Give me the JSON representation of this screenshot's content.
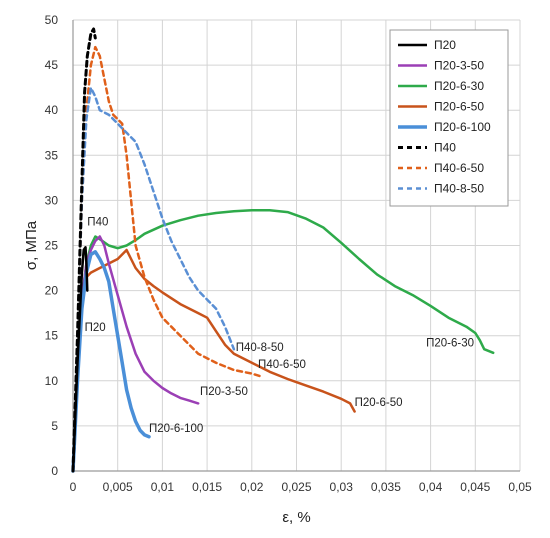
{
  "chart_data": {
    "type": "line",
    "xlabel": "ε, %",
    "ylabel": "σ, МПа",
    "xlim": [
      0,
      0.05
    ],
    "ylim": [
      0,
      50
    ],
    "x_ticks": [
      "0",
      "0,005",
      "0,01",
      "0,015",
      "0,02",
      "0,025",
      "0,03",
      "0,035",
      "0,04",
      "0,045",
      "0,05"
    ],
    "y_ticks": [
      "0",
      "5",
      "10",
      "15",
      "20",
      "25",
      "30",
      "35",
      "40",
      "45",
      "50"
    ],
    "grid": true,
    "legend_position": "top-right",
    "series": [
      {
        "name": "П20",
        "color": "#000000",
        "dash": "solid",
        "width": 2.5,
        "points": [
          [
            0,
            0
          ],
          [
            0.0005,
            12
          ],
          [
            0.001,
            22
          ],
          [
            0.0012,
            24.5
          ],
          [
            0.0014,
            24.8
          ],
          [
            0.0015,
            23
          ],
          [
            0.0016,
            20
          ]
        ]
      },
      {
        "name": "П20-3-50",
        "color": "#9b3fb5",
        "dash": "solid",
        "width": 2.5,
        "points": [
          [
            0,
            0
          ],
          [
            0.0005,
            10
          ],
          [
            0.001,
            19
          ],
          [
            0.0015,
            23
          ],
          [
            0.002,
            24.5
          ],
          [
            0.0025,
            25.5
          ],
          [
            0.003,
            26
          ],
          [
            0.0035,
            25
          ],
          [
            0.004,
            23
          ],
          [
            0.005,
            19.5
          ],
          [
            0.006,
            16
          ],
          [
            0.007,
            13
          ],
          [
            0.008,
            11
          ],
          [
            0.009,
            10
          ],
          [
            0.01,
            9.2
          ],
          [
            0.011,
            8.6
          ],
          [
            0.012,
            8.1
          ],
          [
            0.013,
            7.8
          ],
          [
            0.014,
            7.5
          ]
        ]
      },
      {
        "name": "П20-6-30",
        "color": "#2eaa4a",
        "dash": "solid",
        "width": 2.5,
        "points": [
          [
            0,
            0
          ],
          [
            0.0005,
            10
          ],
          [
            0.001,
            19
          ],
          [
            0.0015,
            23
          ],
          [
            0.002,
            25
          ],
          [
            0.0025,
            26
          ],
          [
            0.003,
            25.7
          ],
          [
            0.004,
            25
          ],
          [
            0.005,
            24.7
          ],
          [
            0.006,
            25
          ],
          [
            0.007,
            25.6
          ],
          [
            0.008,
            26.3
          ],
          [
            0.01,
            27.2
          ],
          [
            0.012,
            27.8
          ],
          [
            0.014,
            28.3
          ],
          [
            0.016,
            28.6
          ],
          [
            0.018,
            28.8
          ],
          [
            0.02,
            28.9
          ],
          [
            0.022,
            28.9
          ],
          [
            0.024,
            28.7
          ],
          [
            0.026,
            28
          ],
          [
            0.028,
            27
          ],
          [
            0.03,
            25.3
          ],
          [
            0.032,
            23.5
          ],
          [
            0.034,
            21.8
          ],
          [
            0.036,
            20.5
          ],
          [
            0.038,
            19.5
          ],
          [
            0.04,
            18.3
          ],
          [
            0.042,
            17
          ],
          [
            0.044,
            16
          ],
          [
            0.045,
            15.3
          ],
          [
            0.0455,
            14.5
          ],
          [
            0.046,
            13.5
          ],
          [
            0.047,
            13.1
          ]
        ]
      },
      {
        "name": "П20-6-50",
        "color": "#c8531b",
        "dash": "solid",
        "width": 2.5,
        "points": [
          [
            0,
            0
          ],
          [
            0.0005,
            10
          ],
          [
            0.001,
            18.5
          ],
          [
            0.0015,
            21.5
          ],
          [
            0.002,
            22
          ],
          [
            0.003,
            22.5
          ],
          [
            0.004,
            23
          ],
          [
            0.005,
            23.5
          ],
          [
            0.006,
            24.5
          ],
          [
            0.0065,
            23.5
          ],
          [
            0.007,
            22.5
          ],
          [
            0.008,
            21.3
          ],
          [
            0.009,
            20.5
          ],
          [
            0.01,
            19.8
          ],
          [
            0.012,
            18.5
          ],
          [
            0.014,
            17.5
          ],
          [
            0.015,
            17
          ],
          [
            0.016,
            15.5
          ],
          [
            0.017,
            14
          ],
          [
            0.018,
            13
          ],
          [
            0.02,
            12
          ],
          [
            0.022,
            11
          ],
          [
            0.024,
            10.2
          ],
          [
            0.026,
            9.5
          ],
          [
            0.028,
            8.8
          ],
          [
            0.03,
            8
          ],
          [
            0.031,
            7.5
          ],
          [
            0.0315,
            6.6
          ]
        ]
      },
      {
        "name": "П20-6-100",
        "color": "#4a8fd8",
        "dash": "solid",
        "width": 3.5,
        "points": [
          [
            0,
            0
          ],
          [
            0.0005,
            10
          ],
          [
            0.001,
            18
          ],
          [
            0.0015,
            22
          ],
          [
            0.002,
            24
          ],
          [
            0.0025,
            24.3
          ],
          [
            0.003,
            23.5
          ],
          [
            0.0035,
            22.5
          ],
          [
            0.004,
            21
          ],
          [
            0.0045,
            18
          ],
          [
            0.005,
            15
          ],
          [
            0.0055,
            12
          ],
          [
            0.006,
            9
          ],
          [
            0.0065,
            7
          ],
          [
            0.007,
            5.5
          ],
          [
            0.0075,
            4.5
          ],
          [
            0.008,
            4
          ],
          [
            0.0085,
            3.8
          ]
        ]
      },
      {
        "name": "П40",
        "color": "#000000",
        "dash": "dash",
        "width": 3,
        "points": [
          [
            0,
            0
          ],
          [
            0.0005,
            15
          ],
          [
            0.001,
            32
          ],
          [
            0.0013,
            42
          ],
          [
            0.0016,
            46
          ],
          [
            0.002,
            48.5
          ],
          [
            0.0023,
            49
          ],
          [
            0.0025,
            48
          ]
        ]
      },
      {
        "name": "П40-6-50",
        "color": "#e0601a",
        "dash": "dash",
        "width": 2.5,
        "points": [
          [
            0,
            0
          ],
          [
            0.0005,
            15
          ],
          [
            0.001,
            30
          ],
          [
            0.0015,
            40
          ],
          [
            0.002,
            45
          ],
          [
            0.0025,
            47
          ],
          [
            0.003,
            46
          ],
          [
            0.0035,
            43.5
          ],
          [
            0.004,
            41
          ],
          [
            0.0045,
            39.5
          ],
          [
            0.005,
            39
          ],
          [
            0.0055,
            38.5
          ],
          [
            0.006,
            35
          ],
          [
            0.0065,
            30
          ],
          [
            0.007,
            25
          ],
          [
            0.008,
            21.5
          ],
          [
            0.009,
            19
          ],
          [
            0.01,
            17
          ],
          [
            0.012,
            15
          ],
          [
            0.014,
            13
          ],
          [
            0.016,
            12
          ],
          [
            0.018,
            11.2
          ],
          [
            0.02,
            10.8
          ],
          [
            0.021,
            10.5
          ]
        ]
      },
      {
        "name": "П40-8-50",
        "color": "#5a8fd4",
        "dash": "dash",
        "width": 2.5,
        "points": [
          [
            0,
            0
          ],
          [
            0.0005,
            15
          ],
          [
            0.001,
            30
          ],
          [
            0.0015,
            39
          ],
          [
            0.002,
            42.5
          ],
          [
            0.0025,
            41.5
          ],
          [
            0.003,
            40
          ],
          [
            0.004,
            39.5
          ],
          [
            0.005,
            38.5
          ],
          [
            0.006,
            37.5
          ],
          [
            0.007,
            36.5
          ],
          [
            0.008,
            34
          ],
          [
            0.009,
            31
          ],
          [
            0.01,
            28
          ],
          [
            0.011,
            25.5
          ],
          [
            0.012,
            23.5
          ],
          [
            0.013,
            21.5
          ],
          [
            0.014,
            20
          ],
          [
            0.015,
            19
          ],
          [
            0.016,
            18
          ],
          [
            0.017,
            16
          ],
          [
            0.018,
            13.5
          ]
        ]
      }
    ],
    "annotations": [
      {
        "text": "П40",
        "x": 0.0016,
        "y": 27.2
      },
      {
        "text": "П20",
        "x": 0.0013,
        "y": 15.5
      },
      {
        "text": "П40-8-50",
        "x": 0.0182,
        "y": 13.3
      },
      {
        "text": "П40-6-50",
        "x": 0.0207,
        "y": 11.4
      },
      {
        "text": "П20-3-50",
        "x": 0.0142,
        "y": 8.4
      },
      {
        "text": "П20-6-100",
        "x": 0.0085,
        "y": 4.3
      },
      {
        "text": "П20-6-50",
        "x": 0.0315,
        "y": 7.2
      },
      {
        "text": "П20-6-30",
        "x": 0.0395,
        "y": 13.8
      }
    ]
  }
}
